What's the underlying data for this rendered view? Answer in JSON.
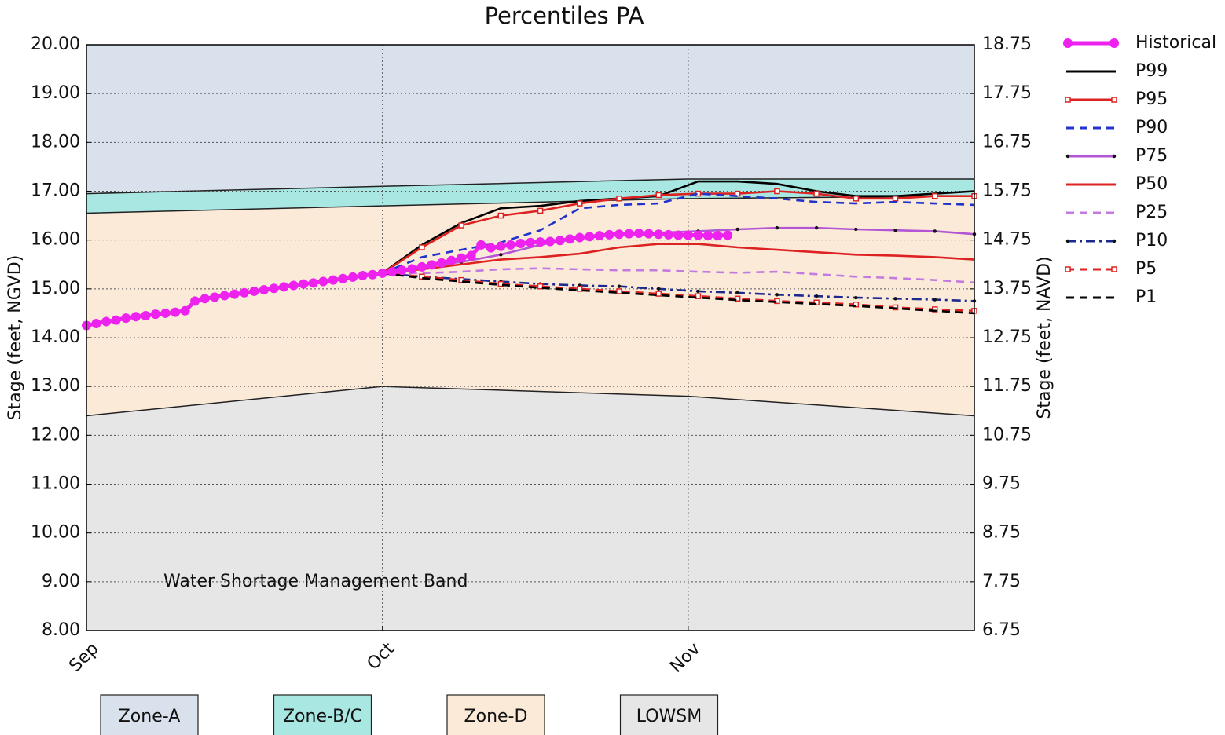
{
  "chart_data": {
    "type": "line",
    "title": "Percentiles PA",
    "y_label": "Stage (feet, NGVD)",
    "y2_label": "Stage (feet, NAVD)",
    "annotation": "Water Shortage Management Band",
    "xlim": [
      0,
      90
    ],
    "xticks": [
      {
        "value": 0,
        "label": "Sep"
      },
      {
        "value": 30,
        "label": "Oct"
      },
      {
        "value": 61,
        "label": "Nov"
      }
    ],
    "ylim": [
      8,
      20
    ],
    "yticks": [
      {
        "value": 8,
        "label": "8.00"
      },
      {
        "value": 9,
        "label": "9.00"
      },
      {
        "value": 10,
        "label": "10.00"
      },
      {
        "value": 11,
        "label": "11.00"
      },
      {
        "value": 12,
        "label": "12.00"
      },
      {
        "value": 13,
        "label": "13.00"
      },
      {
        "value": 14,
        "label": "14.00"
      },
      {
        "value": 15,
        "label": "15.00"
      },
      {
        "value": 16,
        "label": "16.00"
      },
      {
        "value": 17,
        "label": "17.00"
      },
      {
        "value": 18,
        "label": "18.00"
      },
      {
        "value": 19,
        "label": "19.00"
      },
      {
        "value": 20,
        "label": "20.00"
      }
    ],
    "y2lim": [
      6.75,
      18.75
    ],
    "y2ticks": [
      6.75,
      7.75,
      8.75,
      9.75,
      10.75,
      11.75,
      12.75,
      13.75,
      14.75,
      15.75,
      16.75,
      17.75,
      18.75
    ],
    "grid": true,
    "legend": "outside right",
    "zones": {
      "x": [
        0,
        30,
        61,
        90
      ],
      "bands": [
        {
          "name": "Zone-A",
          "color": "#d8e1ec",
          "lower": [
            16.95,
            17.1,
            17.25,
            17.25
          ]
        },
        {
          "name": "Zone-B/C",
          "color": "#a9e7e2",
          "lower": [
            16.55,
            16.7,
            16.85,
            16.9
          ]
        },
        {
          "name": "Zone-D",
          "color": "#fcead9",
          "lower": [
            12.4,
            13.0,
            12.8,
            12.4
          ]
        },
        {
          "name": "LOWSM",
          "color": "#e6e6e6"
        }
      ]
    },
    "series": [
      {
        "name": "Historical",
        "color": "#ee22ee",
        "dash": "solid",
        "marker": "circle",
        "x": [
          0,
          1,
          2,
          3,
          4,
          5,
          6,
          7,
          8,
          9,
          10,
          11,
          12,
          13,
          14,
          15,
          16,
          17,
          18,
          19,
          20,
          21,
          22,
          23,
          24,
          25,
          26,
          27,
          28,
          29,
          30,
          31,
          32,
          33,
          34,
          35,
          36,
          37,
          38,
          39,
          40,
          41,
          42,
          43,
          44,
          45,
          46,
          47,
          48,
          49,
          50,
          51,
          52,
          53,
          54,
          55,
          56,
          57,
          58,
          59,
          60,
          61,
          62,
          63,
          64,
          65
        ],
        "values": [
          14.25,
          14.29,
          14.33,
          14.36,
          14.4,
          14.43,
          14.45,
          14.48,
          14.5,
          14.52,
          14.55,
          14.75,
          14.8,
          14.83,
          14.86,
          14.89,
          14.92,
          14.95,
          14.98,
          15.01,
          15.04,
          15.07,
          15.1,
          15.12,
          15.15,
          15.18,
          15.21,
          15.24,
          15.27,
          15.29,
          15.32,
          15.35,
          15.38,
          15.41,
          15.45,
          15.49,
          15.53,
          15.58,
          15.63,
          15.68,
          15.9,
          15.84,
          15.87,
          15.9,
          15.93,
          15.95,
          15.96,
          15.97,
          15.99,
          16.02,
          16.05,
          16.07,
          16.09,
          16.11,
          16.12,
          16.13,
          16.14,
          16.13,
          16.12,
          16.11,
          16.1,
          16.1,
          16.1,
          16.09,
          16.09,
          16.1
        ]
      },
      {
        "name": "P99",
        "color": "#000000",
        "dash": "solid",
        "marker": "none",
        "x": [
          30,
          34,
          38,
          42,
          46,
          50,
          54,
          58,
          62,
          66,
          70,
          74,
          78,
          82,
          86,
          90
        ],
        "values": [
          15.32,
          15.9,
          16.35,
          16.65,
          16.7,
          16.8,
          16.85,
          16.9,
          17.2,
          17.2,
          17.15,
          17.0,
          16.9,
          16.9,
          16.95,
          17.0
        ]
      },
      {
        "name": "P95",
        "color": "#dd2222",
        "dash": "solid",
        "marker": "square",
        "x": [
          30,
          34,
          38,
          42,
          46,
          50,
          54,
          58,
          62,
          66,
          70,
          74,
          78,
          82,
          86,
          90
        ],
        "values": [
          15.32,
          15.85,
          16.3,
          16.5,
          16.6,
          16.75,
          16.85,
          16.92,
          16.95,
          16.95,
          17.0,
          16.95,
          16.85,
          16.85,
          16.9,
          16.9
        ]
      },
      {
        "name": "P90",
        "color": "#2233cc",
        "dash": "dashed",
        "marker": "none",
        "x": [
          30,
          34,
          38,
          42,
          46,
          50,
          54,
          58,
          62,
          66,
          70,
          74,
          78,
          82,
          86,
          90
        ],
        "values": [
          15.32,
          15.65,
          15.8,
          15.95,
          16.2,
          16.65,
          16.72,
          16.75,
          16.95,
          16.9,
          16.85,
          16.78,
          16.75,
          16.78,
          16.75,
          16.72
        ]
      },
      {
        "name": "P75",
        "color": "#b455d6",
        "dash": "solid",
        "marker": "dot",
        "x": [
          30,
          34,
          38,
          42,
          46,
          50,
          54,
          58,
          62,
          66,
          70,
          74,
          78,
          82,
          86,
          90
        ],
        "values": [
          15.32,
          15.45,
          15.55,
          15.7,
          15.9,
          16.05,
          16.15,
          16.15,
          16.18,
          16.22,
          16.25,
          16.25,
          16.22,
          16.2,
          16.18,
          16.12
        ]
      },
      {
        "name": "P50",
        "color": "#dd2222",
        "dash": "solid",
        "marker": "none",
        "x": [
          30,
          34,
          38,
          42,
          46,
          50,
          54,
          58,
          62,
          66,
          70,
          74,
          78,
          82,
          86,
          90
        ],
        "values": [
          15.32,
          15.4,
          15.5,
          15.6,
          15.65,
          15.72,
          15.85,
          15.92,
          15.92,
          15.85,
          15.8,
          15.75,
          15.7,
          15.68,
          15.65,
          15.6
        ]
      },
      {
        "name": "P25",
        "color": "#c27ae0",
        "dash": "dashed",
        "marker": "none",
        "x": [
          30,
          34,
          38,
          42,
          46,
          50,
          54,
          58,
          62,
          66,
          70,
          74,
          78,
          82,
          86,
          90
        ],
        "values": [
          15.32,
          15.32,
          15.35,
          15.4,
          15.42,
          15.4,
          15.38,
          15.38,
          15.35,
          15.33,
          15.35,
          15.3,
          15.25,
          15.22,
          15.18,
          15.13
        ]
      },
      {
        "name": "P10",
        "color": "#1a2a8e",
        "dash": "dashdot",
        "marker": "dot",
        "x": [
          30,
          34,
          38,
          42,
          46,
          50,
          54,
          58,
          62,
          66,
          70,
          74,
          78,
          82,
          86,
          90
        ],
        "values": [
          15.32,
          15.25,
          15.2,
          15.15,
          15.1,
          15.07,
          15.05,
          15.0,
          14.95,
          14.92,
          14.88,
          14.85,
          14.82,
          14.8,
          14.78,
          14.75
        ]
      },
      {
        "name": "P5",
        "color": "#dd2222",
        "dash": "dashed",
        "marker": "square",
        "x": [
          30,
          34,
          38,
          42,
          46,
          50,
          54,
          58,
          62,
          66,
          70,
          74,
          78,
          82,
          86,
          90
        ],
        "values": [
          15.32,
          15.25,
          15.18,
          15.1,
          15.05,
          15.0,
          14.95,
          14.9,
          14.85,
          14.8,
          14.75,
          14.72,
          14.68,
          14.62,
          14.58,
          14.55
        ]
      },
      {
        "name": "P1",
        "color": "#000000",
        "dash": "dashed",
        "marker": "none",
        "x": [
          30,
          34,
          38,
          42,
          46,
          50,
          54,
          58,
          62,
          66,
          70,
          74,
          78,
          82,
          86,
          90
        ],
        "values": [
          15.32,
          15.22,
          15.15,
          15.08,
          15.02,
          14.97,
          14.92,
          14.87,
          14.82,
          14.77,
          14.73,
          14.69,
          14.65,
          14.6,
          14.55,
          14.5
        ]
      }
    ]
  }
}
